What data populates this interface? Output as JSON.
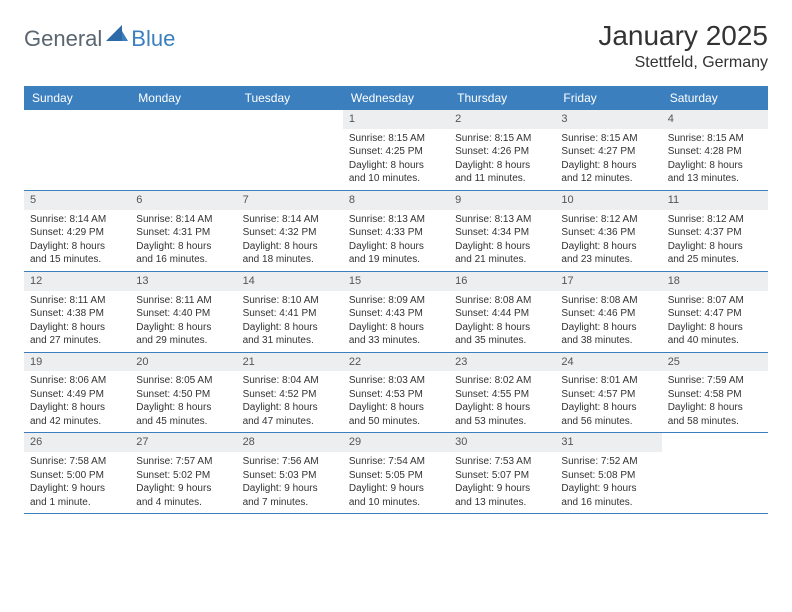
{
  "logo": {
    "text1": "General",
    "text2": "Blue"
  },
  "title": "January 2025",
  "location": "Stettfeld, Germany",
  "colors": {
    "header_bg": "#3b7fbf",
    "header_text": "#ffffff",
    "daynum_bg": "#eceef0",
    "border": "#3b7fbf",
    "logo_gray": "#5a6670",
    "logo_blue": "#3b7fbf"
  },
  "weekdays": [
    "Sunday",
    "Monday",
    "Tuesday",
    "Wednesday",
    "Thursday",
    "Friday",
    "Saturday"
  ],
  "weeks": [
    [
      null,
      null,
      null,
      {
        "n": "1",
        "sr": "Sunrise: 8:15 AM",
        "ss": "Sunset: 4:25 PM",
        "d1": "Daylight: 8 hours",
        "d2": "and 10 minutes."
      },
      {
        "n": "2",
        "sr": "Sunrise: 8:15 AM",
        "ss": "Sunset: 4:26 PM",
        "d1": "Daylight: 8 hours",
        "d2": "and 11 minutes."
      },
      {
        "n": "3",
        "sr": "Sunrise: 8:15 AM",
        "ss": "Sunset: 4:27 PM",
        "d1": "Daylight: 8 hours",
        "d2": "and 12 minutes."
      },
      {
        "n": "4",
        "sr": "Sunrise: 8:15 AM",
        "ss": "Sunset: 4:28 PM",
        "d1": "Daylight: 8 hours",
        "d2": "and 13 minutes."
      }
    ],
    [
      {
        "n": "5",
        "sr": "Sunrise: 8:14 AM",
        "ss": "Sunset: 4:29 PM",
        "d1": "Daylight: 8 hours",
        "d2": "and 15 minutes."
      },
      {
        "n": "6",
        "sr": "Sunrise: 8:14 AM",
        "ss": "Sunset: 4:31 PM",
        "d1": "Daylight: 8 hours",
        "d2": "and 16 minutes."
      },
      {
        "n": "7",
        "sr": "Sunrise: 8:14 AM",
        "ss": "Sunset: 4:32 PM",
        "d1": "Daylight: 8 hours",
        "d2": "and 18 minutes."
      },
      {
        "n": "8",
        "sr": "Sunrise: 8:13 AM",
        "ss": "Sunset: 4:33 PM",
        "d1": "Daylight: 8 hours",
        "d2": "and 19 minutes."
      },
      {
        "n": "9",
        "sr": "Sunrise: 8:13 AM",
        "ss": "Sunset: 4:34 PM",
        "d1": "Daylight: 8 hours",
        "d2": "and 21 minutes."
      },
      {
        "n": "10",
        "sr": "Sunrise: 8:12 AM",
        "ss": "Sunset: 4:36 PM",
        "d1": "Daylight: 8 hours",
        "d2": "and 23 minutes."
      },
      {
        "n": "11",
        "sr": "Sunrise: 8:12 AM",
        "ss": "Sunset: 4:37 PM",
        "d1": "Daylight: 8 hours",
        "d2": "and 25 minutes."
      }
    ],
    [
      {
        "n": "12",
        "sr": "Sunrise: 8:11 AM",
        "ss": "Sunset: 4:38 PM",
        "d1": "Daylight: 8 hours",
        "d2": "and 27 minutes."
      },
      {
        "n": "13",
        "sr": "Sunrise: 8:11 AM",
        "ss": "Sunset: 4:40 PM",
        "d1": "Daylight: 8 hours",
        "d2": "and 29 minutes."
      },
      {
        "n": "14",
        "sr": "Sunrise: 8:10 AM",
        "ss": "Sunset: 4:41 PM",
        "d1": "Daylight: 8 hours",
        "d2": "and 31 minutes."
      },
      {
        "n": "15",
        "sr": "Sunrise: 8:09 AM",
        "ss": "Sunset: 4:43 PM",
        "d1": "Daylight: 8 hours",
        "d2": "and 33 minutes."
      },
      {
        "n": "16",
        "sr": "Sunrise: 8:08 AM",
        "ss": "Sunset: 4:44 PM",
        "d1": "Daylight: 8 hours",
        "d2": "and 35 minutes."
      },
      {
        "n": "17",
        "sr": "Sunrise: 8:08 AM",
        "ss": "Sunset: 4:46 PM",
        "d1": "Daylight: 8 hours",
        "d2": "and 38 minutes."
      },
      {
        "n": "18",
        "sr": "Sunrise: 8:07 AM",
        "ss": "Sunset: 4:47 PM",
        "d1": "Daylight: 8 hours",
        "d2": "and 40 minutes."
      }
    ],
    [
      {
        "n": "19",
        "sr": "Sunrise: 8:06 AM",
        "ss": "Sunset: 4:49 PM",
        "d1": "Daylight: 8 hours",
        "d2": "and 42 minutes."
      },
      {
        "n": "20",
        "sr": "Sunrise: 8:05 AM",
        "ss": "Sunset: 4:50 PM",
        "d1": "Daylight: 8 hours",
        "d2": "and 45 minutes."
      },
      {
        "n": "21",
        "sr": "Sunrise: 8:04 AM",
        "ss": "Sunset: 4:52 PM",
        "d1": "Daylight: 8 hours",
        "d2": "and 47 minutes."
      },
      {
        "n": "22",
        "sr": "Sunrise: 8:03 AM",
        "ss": "Sunset: 4:53 PM",
        "d1": "Daylight: 8 hours",
        "d2": "and 50 minutes."
      },
      {
        "n": "23",
        "sr": "Sunrise: 8:02 AM",
        "ss": "Sunset: 4:55 PM",
        "d1": "Daylight: 8 hours",
        "d2": "and 53 minutes."
      },
      {
        "n": "24",
        "sr": "Sunrise: 8:01 AM",
        "ss": "Sunset: 4:57 PM",
        "d1": "Daylight: 8 hours",
        "d2": "and 56 minutes."
      },
      {
        "n": "25",
        "sr": "Sunrise: 7:59 AM",
        "ss": "Sunset: 4:58 PM",
        "d1": "Daylight: 8 hours",
        "d2": "and 58 minutes."
      }
    ],
    [
      {
        "n": "26",
        "sr": "Sunrise: 7:58 AM",
        "ss": "Sunset: 5:00 PM",
        "d1": "Daylight: 9 hours",
        "d2": "and 1 minute."
      },
      {
        "n": "27",
        "sr": "Sunrise: 7:57 AM",
        "ss": "Sunset: 5:02 PM",
        "d1": "Daylight: 9 hours",
        "d2": "and 4 minutes."
      },
      {
        "n": "28",
        "sr": "Sunrise: 7:56 AM",
        "ss": "Sunset: 5:03 PM",
        "d1": "Daylight: 9 hours",
        "d2": "and 7 minutes."
      },
      {
        "n": "29",
        "sr": "Sunrise: 7:54 AM",
        "ss": "Sunset: 5:05 PM",
        "d1": "Daylight: 9 hours",
        "d2": "and 10 minutes."
      },
      {
        "n": "30",
        "sr": "Sunrise: 7:53 AM",
        "ss": "Sunset: 5:07 PM",
        "d1": "Daylight: 9 hours",
        "d2": "and 13 minutes."
      },
      {
        "n": "31",
        "sr": "Sunrise: 7:52 AM",
        "ss": "Sunset: 5:08 PM",
        "d1": "Daylight: 9 hours",
        "d2": "and 16 minutes."
      },
      null
    ]
  ]
}
